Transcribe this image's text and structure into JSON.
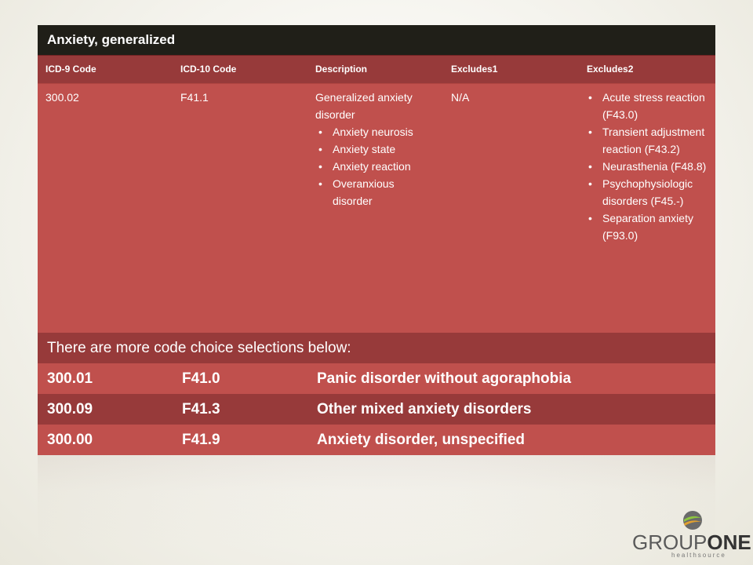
{
  "table": {
    "title": "Anxiety, generalized",
    "headers": [
      "ICD-9 Code",
      "ICD-10 Code",
      "Description",
      "Excludes1",
      "Excludes2"
    ],
    "detail": {
      "icd9": "300.02",
      "icd10": "F41.1",
      "description": "Generalized anxiety disorder",
      "description_items": [
        "Anxiety neurosis",
        "Anxiety state",
        "Anxiety reaction",
        "Overanxious disorder"
      ],
      "excludes1": "N/A",
      "excludes2_items": [
        "Acute stress reaction (F43.0)",
        "Transient adjustment reaction (F43.2)",
        "Neurasthenia (F48.8)",
        "Psychophysiologic disorders (F45.-)",
        "Separation anxiety (F93.0)"
      ]
    },
    "more_text": "There are more code choice selections below:",
    "more_codes": [
      {
        "icd9": "300.01",
        "icd10": "F41.0",
        "description": "Panic disorder without agoraphobia"
      },
      {
        "icd9": "300.09",
        "icd10": "F41.3",
        "description": "Other mixed anxiety disorders"
      },
      {
        "icd9": "300.00",
        "icd10": "F41.9",
        "description": "Anxiety disorder, unspecified"
      }
    ]
  },
  "logo": {
    "word1": "GROUP",
    "word2": "ONE",
    "subtitle": "healthsource"
  },
  "colors": {
    "title_bar": "#201f18",
    "dark_red": "#973a3a",
    "light_red": "#c0504d"
  }
}
